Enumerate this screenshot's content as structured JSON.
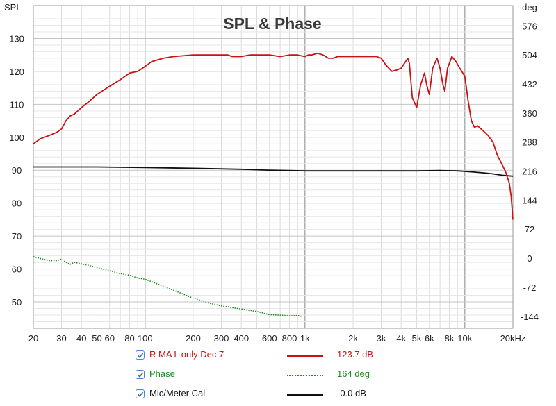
{
  "chart_data": {
    "type": "line",
    "title": "SPL & Phase",
    "y_left_unit": "SPL",
    "y_right_unit": "deg",
    "x_scale": "log",
    "x_unit": "Hz",
    "xlim": [
      20,
      20000
    ],
    "ylim_left": [
      42,
      140
    ],
    "ylim_right": [
      -173.6,
      626.4
    ],
    "grid": true,
    "x_ticks": [
      {
        "v": 20,
        "label": "20"
      },
      {
        "v": 30,
        "label": "30"
      },
      {
        "v": 40,
        "label": "40"
      },
      {
        "v": 50,
        "label": "50"
      },
      {
        "v": 60,
        "label": "60"
      },
      {
        "v": 80,
        "label": "80"
      },
      {
        "v": 100,
        "label": "100"
      },
      {
        "v": 200,
        "label": "200"
      },
      {
        "v": 300,
        "label": "300"
      },
      {
        "v": 400,
        "label": "400"
      },
      {
        "v": 600,
        "label": "600"
      },
      {
        "v": 800,
        "label": "800"
      },
      {
        "v": 1000,
        "label": "1k"
      },
      {
        "v": 2000,
        "label": "2k"
      },
      {
        "v": 3000,
        "label": "3k"
      },
      {
        "v": 4000,
        "label": "4k"
      },
      {
        "v": 5000,
        "label": "5k"
      },
      {
        "v": 6000,
        "label": "6k"
      },
      {
        "v": 8000,
        "label": "8k"
      },
      {
        "v": 10000,
        "label": "10k"
      },
      {
        "v": 20000,
        "label": "20kHz"
      }
    ],
    "y_left_ticks": [
      {
        "v": 50,
        "label": "50"
      },
      {
        "v": 60,
        "label": "60"
      },
      {
        "v": 70,
        "label": "70"
      },
      {
        "v": 80,
        "label": "80"
      },
      {
        "v": 90,
        "label": "90"
      },
      {
        "v": 100,
        "label": "100"
      },
      {
        "v": 110,
        "label": "110"
      },
      {
        "v": 120,
        "label": "120"
      },
      {
        "v": 130,
        "label": "130"
      }
    ],
    "y_right_ticks": [
      {
        "v": -144,
        "label": "-144"
      },
      {
        "v": -72,
        "label": "-72"
      },
      {
        "v": 0,
        "label": "0"
      },
      {
        "v": 72,
        "label": "72"
      },
      {
        "v": 144,
        "label": "144"
      },
      {
        "v": 216,
        "label": "216"
      },
      {
        "v": 288,
        "label": "288"
      },
      {
        "v": 360,
        "label": "360"
      },
      {
        "v": 432,
        "label": "432"
      },
      {
        "v": 504,
        "label": "504"
      },
      {
        "v": 576,
        "label": "576"
      }
    ],
    "series": [
      {
        "name": "R MA L only Dec 7",
        "axis": "left",
        "color": "#cc1111",
        "style": "solid",
        "x": [
          20,
          22,
          25,
          28,
          30,
          32,
          34,
          36,
          40,
          45,
          50,
          60,
          70,
          80,
          90,
          100,
          110,
          130,
          150,
          200,
          250,
          300,
          330,
          350,
          380,
          400,
          450,
          500,
          600,
          700,
          800,
          900,
          1000,
          1050,
          1100,
          1200,
          1300,
          1400,
          1500,
          1600,
          1800,
          2000,
          2500,
          2800,
          3000,
          3200,
          3500,
          3800,
          4000,
          4200,
          4400,
          4500,
          4700,
          5000,
          5300,
          5600,
          5800,
          6000,
          6300,
          6700,
          7000,
          7300,
          7500,
          7800,
          8300,
          8800,
          9300,
          10000,
          10500,
          11000,
          11500,
          12000,
          13000,
          14000,
          15000,
          16000,
          17000,
          18000,
          19000,
          19500,
          20000
        ],
        "y": [
          98,
          99.5,
          100.5,
          101.5,
          102.5,
          105,
          106.5,
          107,
          109,
          111,
          113,
          115.5,
          117.5,
          119.5,
          120,
          121.5,
          123,
          124,
          124.5,
          125,
          125,
          125,
          125,
          124.5,
          124.5,
          124.5,
          125,
          125,
          125,
          124.5,
          125,
          125,
          124.5,
          125,
          125,
          125.5,
          125,
          124,
          124,
          124.5,
          124.5,
          124.5,
          124.5,
          124.5,
          124,
          122,
          120,
          120.5,
          121,
          122.5,
          124,
          122.5,
          112,
          109,
          116,
          119.5,
          115.5,
          113,
          121,
          124,
          121,
          116,
          114,
          121,
          124.5,
          123,
          121,
          118.5,
          111,
          105,
          103,
          103.5,
          102,
          100.5,
          98.5,
          94.5,
          92,
          89.5,
          86,
          82,
          75
        ]
      },
      {
        "name": "Phase",
        "axis": "right",
        "color": "#1e8c1e",
        "style": "dotted",
        "x": [
          20,
          25,
          28,
          30,
          32,
          34,
          36,
          40,
          45,
          50,
          60,
          70,
          80,
          90,
          100,
          120,
          150,
          200,
          250,
          300,
          400,
          500,
          600,
          700,
          800,
          900,
          950
        ],
        "y": [
          4,
          -6,
          -6,
          -2,
          -10,
          -15,
          -10,
          -14,
          -18,
          -23,
          -31,
          -38,
          -42,
          -49,
          -52,
          -64,
          -79,
          -99,
          -111,
          -118,
          -126,
          -132,
          -140,
          -141,
          -143,
          -142,
          -144
        ]
      },
      {
        "name": "Mic/Meter Cal",
        "axis": "left",
        "color": "#111111",
        "style": "solid",
        "x": [
          20,
          50,
          100,
          200,
          400,
          600,
          800,
          1000,
          2000,
          3000,
          5000,
          7000,
          9000,
          11000,
          13000,
          15000,
          17000,
          20000
        ],
        "y": [
          91,
          91,
          90.8,
          90.6,
          90.3,
          90,
          89.9,
          89.8,
          89.8,
          89.8,
          89.8,
          89.9,
          89.8,
          89.5,
          89.2,
          88.9,
          88.5,
          88.2
        ]
      }
    ]
  },
  "legend": [
    {
      "name": "R MA L only Dec 7",
      "value": "123.7 dB",
      "color": "#cc1111",
      "style": "solid",
      "checked": true
    },
    {
      "name": "Phase",
      "value": "164 deg",
      "color": "#1e8c1e",
      "style": "dotted",
      "checked": true
    },
    {
      "name": "Mic/Meter Cal",
      "value": "-0.0 dB",
      "color": "#111111",
      "style": "solid",
      "checked": true
    }
  ]
}
